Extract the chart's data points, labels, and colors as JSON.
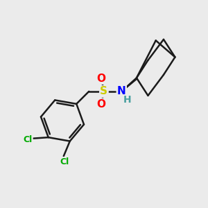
{
  "bg_color": "#ebebeb",
  "bond_color": "#1a1a1a",
  "bond_width": 1.8,
  "atom_colors": {
    "S": "#cccc00",
    "O": "#ff0000",
    "N": "#0000ff",
    "H": "#4aa0a0",
    "Cl": "#00aa00",
    "C": "#1a1a1a"
  },
  "figsize": [
    3.0,
    3.0
  ],
  "dpi": 100
}
